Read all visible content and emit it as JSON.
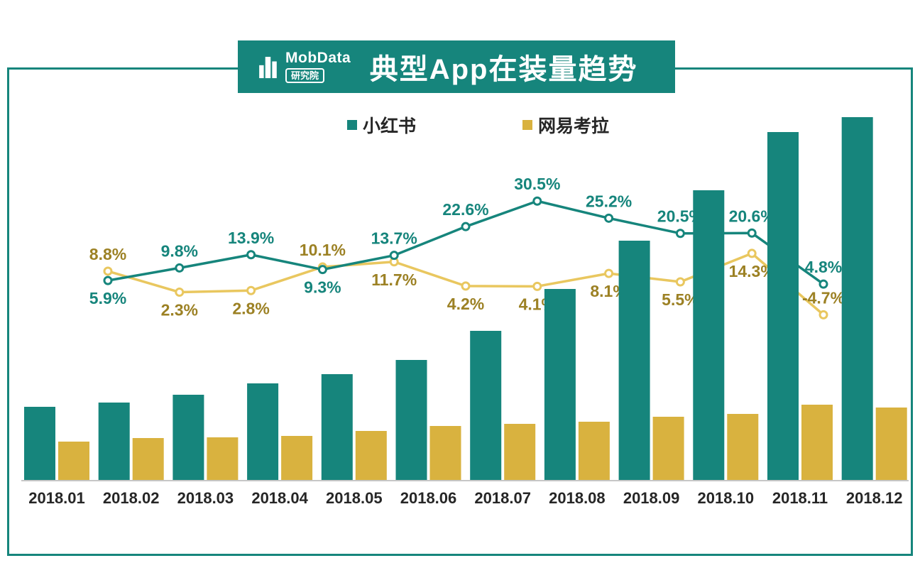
{
  "banner": {
    "brand": "MobData",
    "brand_sub": "研究院",
    "title": "典型App在装量趋势"
  },
  "colors": {
    "teal": "#16857C",
    "gold_bar": "#D9B23F",
    "gold_line": "#E9C75F",
    "gold_label": "#9C8124",
    "teal_label": "#16857C",
    "axis_line": "#C6C6C6",
    "text": "#262626",
    "background": "#FFFFFF"
  },
  "legend": {
    "items": [
      {
        "label": "小红书",
        "color": "#16857C"
      },
      {
        "label": "网易考拉",
        "color": "#D9B23F"
      }
    ]
  },
  "chart_data": {
    "type": "bar+line combo",
    "title": "典型App在装量趋势",
    "categories": [
      "2018.01",
      "2018.02",
      "2018.03",
      "2018.04",
      "2018.05",
      "2018.06",
      "2018.07",
      "2018.08",
      "2018.09",
      "2018.10",
      "2018.11",
      "2018.12"
    ],
    "x_axis": {
      "labels_visible": true
    },
    "y_axis": {
      "labels_visible": false,
      "note": "no numeric value axis shown; bar values estimated from pixel heights as a relative index"
    },
    "bar_series": [
      {
        "name": "小红书",
        "color": "#16857C",
        "unit": "relative installed-base index (estimated, no axis labels shown)",
        "values": [
          10.4,
          11.0,
          12.1,
          13.7,
          15.0,
          17.0,
          21.1,
          27.0,
          33.8,
          40.9,
          49.1,
          51.2
        ]
      },
      {
        "name": "网易考拉",
        "color": "#D9B23F",
        "unit": "relative installed-base index (estimated, no axis labels shown)",
        "values": [
          5.5,
          6.0,
          6.1,
          6.3,
          7.0,
          7.7,
          8.0,
          8.3,
          9.0,
          9.4,
          10.7,
          10.3
        ]
      }
    ],
    "line_series": [
      {
        "name": "小红书",
        "color": "#16857C",
        "label_color": "#16857C",
        "unit": "growth rate %",
        "months": [
          "2018.01",
          "2018.02",
          "2018.03",
          "2018.04",
          "2018.05",
          "2018.06",
          "2018.07",
          "2018.08",
          "2018.09",
          "2018.10",
          "2018.11"
        ],
        "values_pct": [
          5.9,
          9.8,
          13.9,
          9.3,
          13.7,
          22.6,
          30.5,
          25.2,
          20.5,
          20.6,
          4.8
        ],
        "label_pos": [
          "below",
          "above",
          "above",
          "below",
          "above",
          "above",
          "above",
          "above",
          "above",
          "above",
          "above"
        ]
      },
      {
        "name": "网易考拉",
        "color": "#E9C75F",
        "label_color": "#9C8124",
        "unit": "growth rate %",
        "months": [
          "2018.01",
          "2018.02",
          "2018.03",
          "2018.04",
          "2018.05",
          "2018.06",
          "2018.07",
          "2018.08",
          "2018.09",
          "2018.10",
          "2018.11"
        ],
        "values_pct": [
          8.8,
          2.3,
          2.8,
          10.1,
          11.7,
          4.2,
          4.1,
          8.1,
          5.5,
          14.3,
          -4.7
        ],
        "label_pos": [
          "above",
          "below",
          "below",
          "above",
          "below",
          "below",
          "below",
          "below",
          "below",
          "below",
          "above"
        ]
      }
    ],
    "legend_position": "top-center",
    "grid": false,
    "notes": "Lines (11 points, 2018.01-2018.11) show percentage labels; tall bars at right are drawn over line segments/labels, partially hiding 20.5%, 20.6%, 5.5% and 14.3%."
  }
}
